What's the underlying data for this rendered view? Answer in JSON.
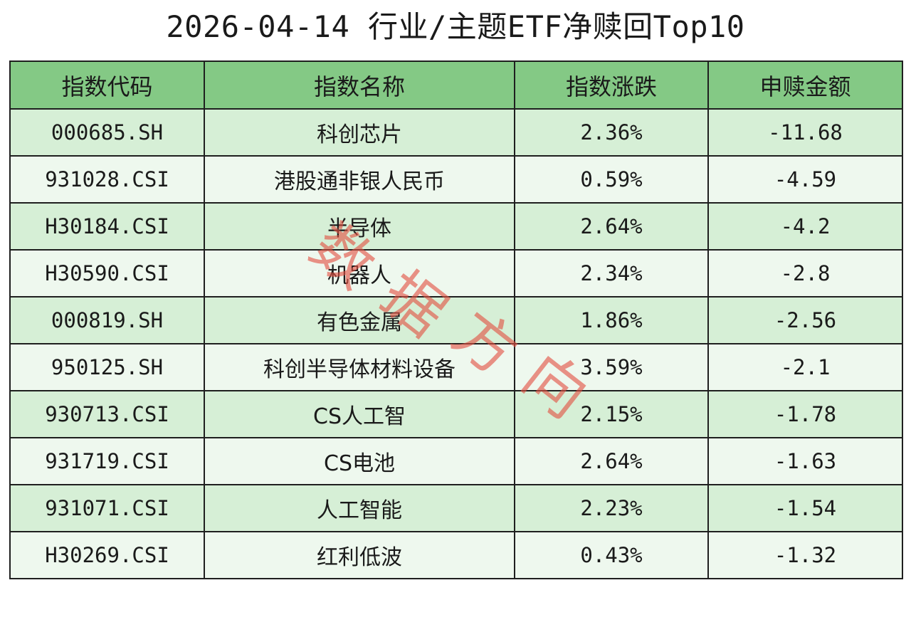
{
  "title": "2026-04-14 行业/主题ETF净赎回Top10",
  "headers": [
    "指数代码",
    "指数名称",
    "指数涨跌",
    "申赎金额"
  ],
  "rows": [
    {
      "code": "000685.SH",
      "name": "科创芯片",
      "change": "2.36%",
      "amount": "-11.68"
    },
    {
      "code": "931028.CSI",
      "name": "港股通非银人民币",
      "change": "0.59%",
      "amount": "-4.59"
    },
    {
      "code": "H30184.CSI",
      "name": "半导体",
      "change": "2.64%",
      "amount": "-4.2"
    },
    {
      "code": "H30590.CSI",
      "name": "机器人",
      "change": "2.34%",
      "amount": "-2.8"
    },
    {
      "code": "000819.SH",
      "name": "有色金属",
      "change": "1.86%",
      "amount": "-2.56"
    },
    {
      "code": "950125.SH",
      "name": "科创半导体材料设备",
      "change": "3.59%",
      "amount": "-2.1"
    },
    {
      "code": "930713.CSI",
      "name": "CS人工智",
      "change": "2.15%",
      "amount": "-1.78"
    },
    {
      "code": "931719.CSI",
      "name": "CS电池",
      "change": "2.64%",
      "amount": "-1.63"
    },
    {
      "code": "931071.CSI",
      "name": "人工智能",
      "change": "2.23%",
      "amount": "-1.54"
    },
    {
      "code": "H30269.CSI",
      "name": "红利低波",
      "change": "0.43%",
      "amount": "-1.32"
    }
  ],
  "watermark": "数据方向",
  "colors": {
    "header_bg": "#84c985",
    "row_odd_bg": "#d6efd6",
    "row_even_bg": "#eef8ee",
    "watermark": "#e25042"
  }
}
